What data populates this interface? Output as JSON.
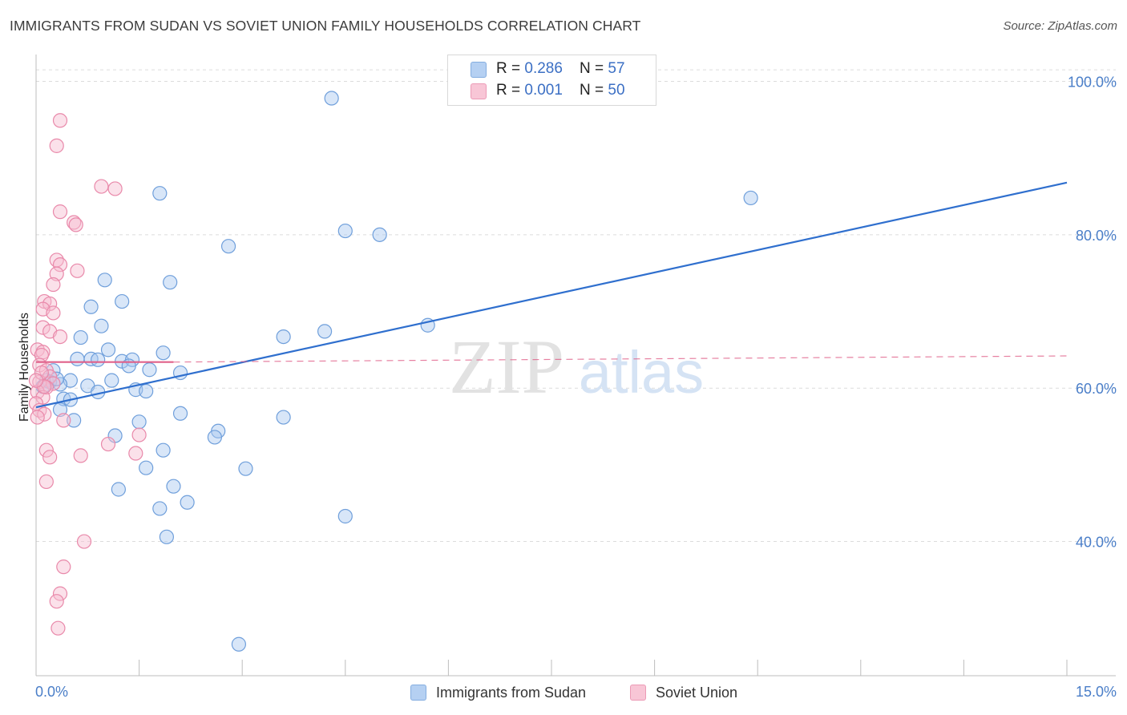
{
  "chart_data": {
    "type": "scatter",
    "title": "IMMIGRANTS FROM SUDAN VS SOVIET UNION FAMILY HOUSEHOLDS CORRELATION CHART",
    "source": "Source: ZipAtlas.com",
    "xlabel": "",
    "ylabel": "Family Households",
    "xlim": [
      0,
      15
    ],
    "ylim": [
      22.5,
      103.5
    ],
    "x_tick_labels": [
      "0.0%",
      "15.0%"
    ],
    "y_ticks": [
      40,
      60,
      80,
      100
    ],
    "y_tick_labels": [
      "40.0%",
      "60.0%",
      "80.0%",
      "100.0%"
    ],
    "watermark": {
      "zip": "ZIP",
      "atlas": "atlas"
    },
    "legend_top": {
      "r_label": "R = ",
      "n_label": "N = ",
      "rows": [
        {
          "r": "0.286",
          "n": "57"
        },
        {
          "r": "0.001",
          "n": "50"
        }
      ]
    },
    "colors": {
      "sudan_fill": "#a9c8f0",
      "sudan_stroke": "#6f9fdb",
      "sudan_line": "#2f6fce",
      "soviet_fill": "#f7bdd0",
      "soviet_stroke": "#e989aa",
      "soviet_line": "#e0608a",
      "grid": "#dcdcdc",
      "tick_text": "#4a7ec8"
    },
    "series": [
      {
        "name": "Immigrants from Sudan",
        "trend": {
          "x0": 0.0,
          "y0": 57.5,
          "x1": 15.0,
          "y1": 86.8
        },
        "points": [
          [
            4.3,
            97.8
          ],
          [
            10.4,
            84.8
          ],
          [
            1.8,
            85.4
          ],
          [
            4.5,
            80.5
          ],
          [
            5.0,
            80.0
          ],
          [
            2.8,
            78.5
          ],
          [
            1.0,
            74.1
          ],
          [
            1.95,
            73.8
          ],
          [
            1.25,
            71.3
          ],
          [
            0.8,
            70.6
          ],
          [
            0.95,
            68.1
          ],
          [
            5.7,
            68.2
          ],
          [
            4.2,
            67.4
          ],
          [
            3.6,
            66.7
          ],
          [
            0.65,
            66.6
          ],
          [
            1.05,
            65.0
          ],
          [
            1.85,
            64.6
          ],
          [
            0.6,
            63.8
          ],
          [
            0.8,
            63.8
          ],
          [
            0.9,
            63.7
          ],
          [
            1.25,
            63.5
          ],
          [
            1.4,
            63.7
          ],
          [
            1.35,
            62.9
          ],
          [
            1.65,
            62.4
          ],
          [
            0.25,
            62.3
          ],
          [
            2.1,
            62.0
          ],
          [
            0.15,
            61.0
          ],
          [
            0.5,
            61.0
          ],
          [
            0.2,
            60.8
          ],
          [
            1.1,
            61.0
          ],
          [
            0.35,
            60.5
          ],
          [
            0.75,
            60.3
          ],
          [
            1.45,
            59.8
          ],
          [
            1.6,
            59.6
          ],
          [
            0.9,
            59.5
          ],
          [
            0.4,
            58.6
          ],
          [
            0.5,
            58.5
          ],
          [
            0.35,
            57.2
          ],
          [
            2.1,
            56.7
          ],
          [
            0.55,
            55.8
          ],
          [
            3.6,
            56.2
          ],
          [
            1.5,
            55.6
          ],
          [
            2.65,
            54.4
          ],
          [
            2.6,
            53.6
          ],
          [
            1.15,
            53.8
          ],
          [
            1.85,
            51.9
          ],
          [
            1.6,
            49.6
          ],
          [
            3.05,
            49.5
          ],
          [
            1.2,
            46.8
          ],
          [
            2.0,
            47.2
          ],
          [
            2.2,
            45.1
          ],
          [
            1.8,
            44.3
          ],
          [
            4.5,
            43.3
          ],
          [
            1.9,
            40.6
          ],
          [
            2.95,
            26.6
          ],
          [
            0.1,
            60.2
          ],
          [
            0.3,
            61.2
          ]
        ]
      },
      {
        "name": "Soviet Union",
        "trend": {
          "x0": 0.0,
          "y0": 63.4,
          "x1": 2.0,
          "y1": 63.4,
          "x_dash_end": 15.0,
          "y_dash_end": 64.2
        },
        "points": [
          [
            0.35,
            94.9
          ],
          [
            0.3,
            91.6
          ],
          [
            0.95,
            86.3
          ],
          [
            1.15,
            86.0
          ],
          [
            0.35,
            83.0
          ],
          [
            0.55,
            81.6
          ],
          [
            0.58,
            81.3
          ],
          [
            0.3,
            76.7
          ],
          [
            0.35,
            76.1
          ],
          [
            0.6,
            75.3
          ],
          [
            0.3,
            74.9
          ],
          [
            0.25,
            73.5
          ],
          [
            0.12,
            71.3
          ],
          [
            0.2,
            71.0
          ],
          [
            0.1,
            70.3
          ],
          [
            0.25,
            69.8
          ],
          [
            0.1,
            67.9
          ],
          [
            0.2,
            67.4
          ],
          [
            0.35,
            66.7
          ],
          [
            0.02,
            65.0
          ],
          [
            0.1,
            64.7
          ],
          [
            0.08,
            64.3
          ],
          [
            0.05,
            63.0
          ],
          [
            0.15,
            62.3
          ],
          [
            0.2,
            61.5
          ],
          [
            0.05,
            60.8
          ],
          [
            0.25,
            60.6
          ],
          [
            0.15,
            60.1
          ],
          [
            0.02,
            59.5
          ],
          [
            0.1,
            58.8
          ],
          [
            0.0,
            58.0
          ],
          [
            0.05,
            57.1
          ],
          [
            0.12,
            56.6
          ],
          [
            0.02,
            56.2
          ],
          [
            0.4,
            55.8
          ],
          [
            1.5,
            53.9
          ],
          [
            1.05,
            52.7
          ],
          [
            0.15,
            51.9
          ],
          [
            0.2,
            51.0
          ],
          [
            0.65,
            51.2
          ],
          [
            1.45,
            51.5
          ],
          [
            0.15,
            47.8
          ],
          [
            0.7,
            40.0
          ],
          [
            0.4,
            36.7
          ],
          [
            0.35,
            33.2
          ],
          [
            0.3,
            32.2
          ],
          [
            0.32,
            28.7
          ],
          [
            0.08,
            62.0
          ],
          [
            0.12,
            60.2
          ],
          [
            0.0,
            61.0
          ]
        ]
      }
    ]
  }
}
